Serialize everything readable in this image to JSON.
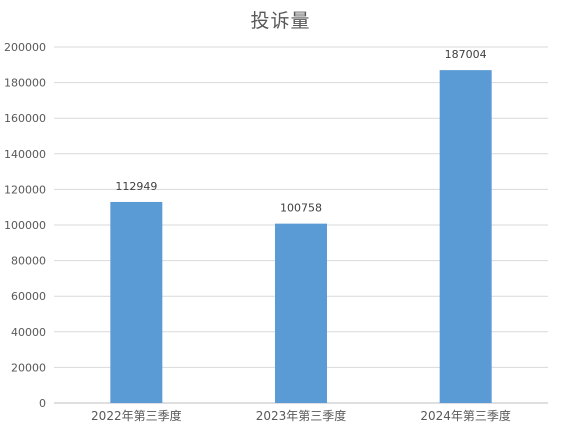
{
  "chart_data": {
    "type": "bar",
    "title": "投诉量",
    "categories": [
      "2022年第三季度",
      "2023年第三季度",
      "2024年第三季度"
    ],
    "values": [
      112949,
      100758,
      187004
    ],
    "data_labels": [
      "112949",
      "100758",
      "187004"
    ],
    "xlabel": "",
    "ylabel": "",
    "ylim": [
      0,
      200000
    ],
    "y_ticks": [
      0,
      20000,
      40000,
      60000,
      80000,
      100000,
      120000,
      140000,
      160000,
      180000,
      200000
    ],
    "y_tick_labels": [
      "0",
      "20000",
      "40000",
      "60000",
      "80000",
      "100000",
      "120000",
      "140000",
      "160000",
      "180000",
      "200000"
    ],
    "grid": true,
    "legend": "none",
    "bar_color": "#5B9BD5",
    "grid_color": "#D9D9D9",
    "text_color": "#595959"
  }
}
